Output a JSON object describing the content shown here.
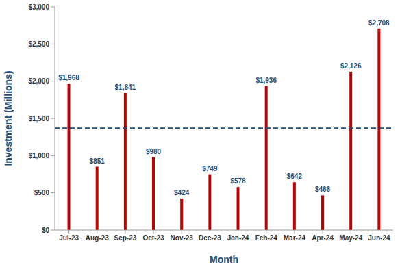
{
  "chart_data": {
    "type": "bar",
    "x_label": "Month",
    "y_label": "Investment (Millions)",
    "categories": [
      "Jul-23",
      "Aug-23",
      "Sep-23",
      "Oct-23",
      "Nov-23",
      "Dec-23",
      "Jan-24",
      "Feb-24",
      "Mar-24",
      "Apr-24",
      "May-24",
      "Jun-24"
    ],
    "values": [
      1968,
      851,
      1841,
      980,
      424,
      749,
      578,
      1936,
      642,
      466,
      2126,
      2708
    ],
    "value_labels": [
      "$1,968",
      "$851",
      "$1,841",
      "$980",
      "$424",
      "$749",
      "$578",
      "$1,936",
      "$642",
      "$466",
      "$2,126",
      "$2,708"
    ],
    "data_labels": true,
    "color": "#c00000",
    "reference_line": 1370,
    "ylim": [
      0,
      3000
    ],
    "yticks": [
      {
        "value": 0,
        "label": "$0"
      },
      {
        "value": 500,
        "label": "$500"
      },
      {
        "value": 1000,
        "label": "$1,000"
      },
      {
        "value": 1500,
        "label": "$1,500"
      },
      {
        "value": 2000,
        "label": "$2,000"
      },
      {
        "value": 2500,
        "label": "$2,500"
      },
      {
        "value": 3000,
        "label": "$3,000"
      }
    ],
    "grid": false
  }
}
